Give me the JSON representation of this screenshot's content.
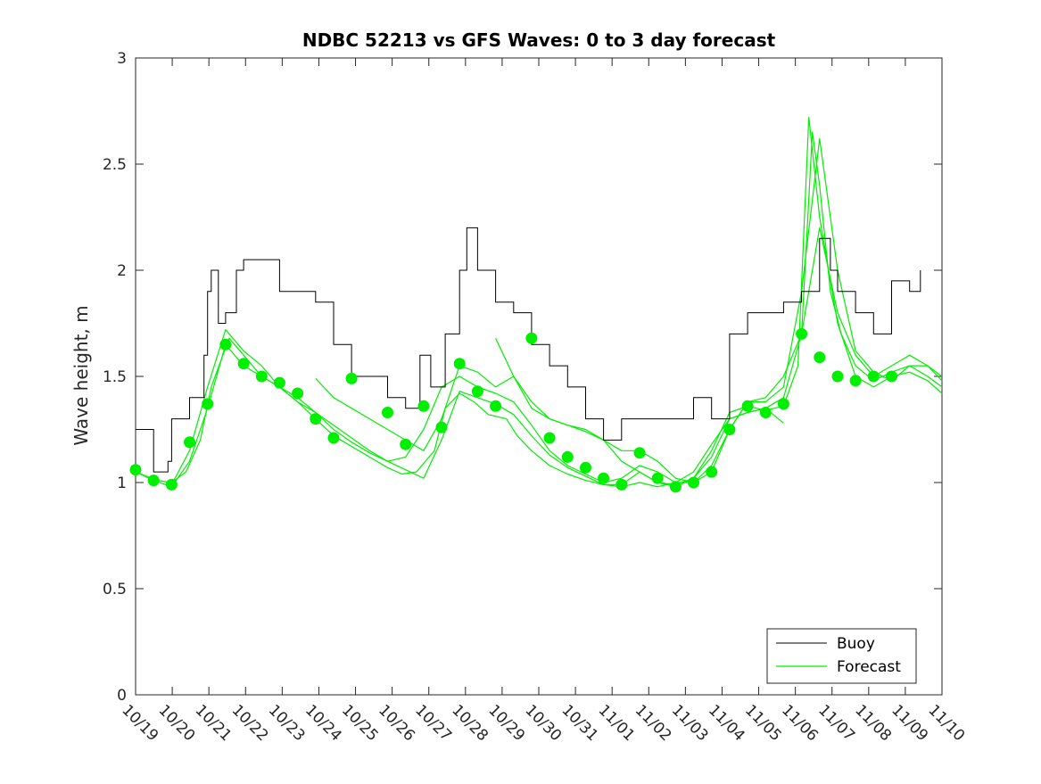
{
  "chart_data": {
    "type": "line",
    "title": "NDBC 52213 vs GFS Waves: 0 to 3 day forecast",
    "xlabel": "",
    "ylabel": "Wave height, m",
    "ylim": [
      0,
      3
    ],
    "yticks": [
      "0",
      "0.5",
      "1",
      "1.5",
      "2",
      "2.5",
      "3"
    ],
    "xlim_days": [
      0,
      22.4
    ],
    "xticks": [
      "10/19",
      "10/20",
      "10/21",
      "10/22",
      "10/23",
      "10/24",
      "10/25",
      "10/26",
      "10/27",
      "10/28",
      "10/29",
      "10/30",
      "10/31",
      "11/01",
      "11/02",
      "11/03",
      "11/04",
      "11/05",
      "11/06",
      "11/07",
      "11/08",
      "11/09",
      "11/10"
    ],
    "legend": {
      "location": "bottom-right",
      "entries": [
        "Buoy",
        "Forecast"
      ]
    },
    "colors": {
      "buoy": "#000000",
      "forecast": "#00ee00",
      "axes": "#262626"
    },
    "buoy": {
      "name": "Buoy",
      "days": [
        0,
        0.5,
        0.9,
        1.0,
        1.5,
        1.9,
        2.0,
        2.1,
        2.3,
        2.5,
        2.8,
        3.0,
        3.5,
        4.0,
        4.5,
        5.0,
        5.5,
        6.0,
        6.5,
        7.0,
        7.5,
        7.9,
        8.2,
        8.6,
        9.0,
        9.2,
        9.5,
        10.0,
        10.5,
        11.0,
        11.5,
        12.0,
        12.5,
        13.0,
        13.5,
        14.0,
        14.4,
        14.6,
        15.0,
        15.5,
        16.0,
        16.5,
        17.0,
        17.1,
        17.5,
        18.0,
        18.5,
        19.0,
        19.3,
        19.5,
        20.0,
        20.5,
        21.0,
        21.5,
        21.8
      ],
      "values": [
        1.25,
        1.05,
        1.1,
        1.3,
        1.4,
        1.6,
        1.9,
        2.0,
        1.75,
        1.8,
        2.0,
        2.05,
        2.05,
        1.9,
        1.9,
        1.85,
        1.65,
        1.5,
        1.5,
        1.4,
        1.35,
        1.6,
        1.45,
        1.7,
        2.0,
        2.2,
        2.0,
        1.85,
        1.8,
        1.65,
        1.55,
        1.45,
        1.3,
        1.2,
        1.3,
        1.3,
        1.3,
        1.3,
        1.3,
        1.4,
        1.3,
        1.7,
        1.8,
        1.8,
        1.8,
        1.85,
        1.9,
        2.15,
        2.0,
        1.9,
        1.8,
        1.7,
        1.95,
        1.9,
        2.0
      ]
    },
    "forecast_runs": [
      {
        "name": "Forecast",
        "days": [
          0,
          0.3,
          0.6,
          1.0,
          1.4,
          1.8,
          2.1,
          2.6,
          3.0,
          3.5,
          4.0,
          4.5,
          5.0,
          5.5,
          6.0,
          6.5,
          7.0,
          7.4,
          7.8,
          8.3,
          8.6,
          9.0,
          9.4,
          9.8,
          10.3,
          10.6,
          11.0,
          11.5,
          12.0,
          12.5,
          13.0,
          13.5,
          14.0,
          14.5,
          15.0,
          15.5,
          16.0,
          16.5,
          17.0,
          17.5,
          18.0,
          18.5,
          18.8,
          19.0,
          19.3,
          19.6,
          20.0,
          20.5,
          21.0,
          21.5,
          22.0,
          22.4
        ],
        "values": [
          1.05,
          1.03,
          1.01,
          1.0,
          1.05,
          1.2,
          1.45,
          1.68,
          1.6,
          1.5,
          1.45,
          1.38,
          1.3,
          1.22,
          1.17,
          1.12,
          1.07,
          1.04,
          1.05,
          1.15,
          1.35,
          1.42,
          1.38,
          1.32,
          1.3,
          1.22,
          1.15,
          1.08,
          1.04,
          1.01,
          0.99,
          0.98,
          1.0,
          0.98,
          1.0,
          1.05,
          1.18,
          1.3,
          1.33,
          1.35,
          1.4,
          1.7,
          2.65,
          2.4,
          1.9,
          1.7,
          1.55,
          1.48,
          1.52,
          1.55,
          1.5,
          1.45
        ]
      },
      {
        "name": "Forecast",
        "days": [
          0,
          0.5,
          1.0,
          1.5,
          2.0,
          2.5,
          3.0,
          3.5,
          4.0,
          4.5,
          5.0,
          5.5,
          6.0,
          6.5,
          7.0,
          7.5,
          8.0,
          8.5,
          9.0,
          9.5,
          10.0,
          10.5,
          11.0,
          11.5,
          12.0,
          12.5,
          13.0,
          13.5,
          14.0,
          14.5,
          15.0,
          15.5,
          16.0,
          16.5,
          17.0,
          17.5,
          18.0,
          18.4,
          18.7,
          19.0,
          19.5,
          20.0,
          20.5,
          21.0,
          21.5,
          22.0,
          22.4
        ],
        "values": [
          1.05,
          1.01,
          0.98,
          1.1,
          1.35,
          1.65,
          1.55,
          1.5,
          1.45,
          1.4,
          1.33,
          1.25,
          1.19,
          1.14,
          1.1,
          1.06,
          1.02,
          1.2,
          1.43,
          1.4,
          1.37,
          1.32,
          1.22,
          1.13,
          1.07,
          1.03,
          0.99,
          0.99,
          1.05,
          1.0,
          0.98,
          1.02,
          1.15,
          1.33,
          1.36,
          1.34,
          1.36,
          1.55,
          2.72,
          2.25,
          1.75,
          1.5,
          1.45,
          1.5,
          1.52,
          1.48,
          1.42
        ]
      },
      {
        "name": "Forecast",
        "days": [
          1.0,
          1.5,
          2.0,
          2.5,
          3.0,
          3.5,
          4.0,
          4.5,
          5.0,
          5.5,
          6.0,
          6.5,
          7.0,
          7.5,
          8.0,
          8.5,
          9.0,
          9.5,
          10.0,
          10.5,
          11.0,
          11.5,
          12.0,
          12.5,
          13.0,
          13.5,
          14.0,
          14.5,
          15.0,
          15.5,
          16.0,
          16.5,
          17.0,
          17.5,
          18.0,
          18.5,
          19.0,
          19.5,
          20.0,
          20.5,
          21.0,
          21.5,
          22.0,
          22.4
        ],
        "values": [
          0.99,
          1.15,
          1.45,
          1.72,
          1.62,
          1.55,
          1.45,
          1.38,
          1.33,
          1.27,
          1.21,
          1.15,
          1.1,
          1.12,
          1.25,
          1.45,
          1.5,
          1.45,
          1.42,
          1.38,
          1.27,
          1.15,
          1.08,
          1.04,
          1.0,
          1.02,
          1.08,
          1.05,
          1.0,
          1.0,
          1.08,
          1.25,
          1.38,
          1.38,
          1.45,
          1.9,
          2.62,
          2.0,
          1.62,
          1.52,
          1.48,
          1.55,
          1.55,
          1.5
        ]
      },
      {
        "name": "Forecast",
        "days": [
          5.0,
          5.5,
          6.0,
          6.5,
          7.0,
          7.5,
          8.0,
          8.5,
          9.0,
          9.5,
          10.0,
          10.5,
          11.0,
          11.5,
          12.0,
          12.5,
          13.0,
          13.5,
          14.0,
          14.5,
          15.0,
          15.5,
          16.0,
          16.5,
          17.0,
          17.5,
          18.0,
          18.5,
          19.0,
          19.5,
          20.0,
          20.5,
          21.0,
          21.5,
          22.0,
          22.4
        ],
        "values": [
          1.49,
          1.4,
          1.35,
          1.3,
          1.25,
          1.2,
          1.15,
          1.3,
          1.55,
          1.52,
          1.45,
          1.5,
          1.38,
          1.3,
          1.27,
          1.25,
          1.2,
          1.15,
          1.15,
          1.1,
          1.02,
          1.0,
          1.05,
          1.25,
          1.38,
          1.4,
          1.5,
          1.7,
          2.2,
          1.8,
          1.6,
          1.5,
          1.55,
          1.6,
          1.55,
          1.48
        ]
      },
      {
        "name": "Forecast",
        "days": [
          10.0,
          10.5,
          11.0,
          11.5,
          12.0,
          12.5,
          13.0,
          13.5,
          14.0,
          14.5,
          15.0,
          15.5,
          16.0,
          16.5,
          17.0,
          17.5,
          18.0
        ],
        "values": [
          1.68,
          1.5,
          1.35,
          1.3,
          1.27,
          1.24,
          1.2,
          1.1,
          1.05,
          1.0,
          0.99,
          1.02,
          1.12,
          1.3,
          1.33,
          1.35,
          1.28
        ]
      }
    ],
    "forecast_markers": {
      "name": "Forecast",
      "days": [
        0,
        0.5,
        1.0,
        1.5,
        2.0,
        2.5,
        3.0,
        3.5,
        4.0,
        4.5,
        5.0,
        5.5,
        6.0,
        7.0,
        7.5,
        8.0,
        8.5,
        9.0,
        9.5,
        10.0,
        11.0,
        11.5,
        12.0,
        12.5,
        13.0,
        13.5,
        14.0,
        14.5,
        15.0,
        15.5,
        16.0,
        16.5,
        17.0,
        17.5,
        18.0,
        18.5,
        19.0,
        19.5,
        20.0,
        20.5,
        21.0
      ],
      "values": [
        1.06,
        1.01,
        0.99,
        1.19,
        1.37,
        1.65,
        1.56,
        1.5,
        1.47,
        1.42,
        1.3,
        1.21,
        1.49,
        1.33,
        1.18,
        1.36,
        1.26,
        1.56,
        1.43,
        1.36,
        1.68,
        1.21,
        1.12,
        1.07,
        1.02,
        0.99,
        1.14,
        1.02,
        0.98,
        1.0,
        1.05,
        1.25,
        1.36,
        1.33,
        1.37,
        1.7,
        1.59,
        1.5,
        1.48,
        1.5,
        1.5
      ]
    }
  }
}
